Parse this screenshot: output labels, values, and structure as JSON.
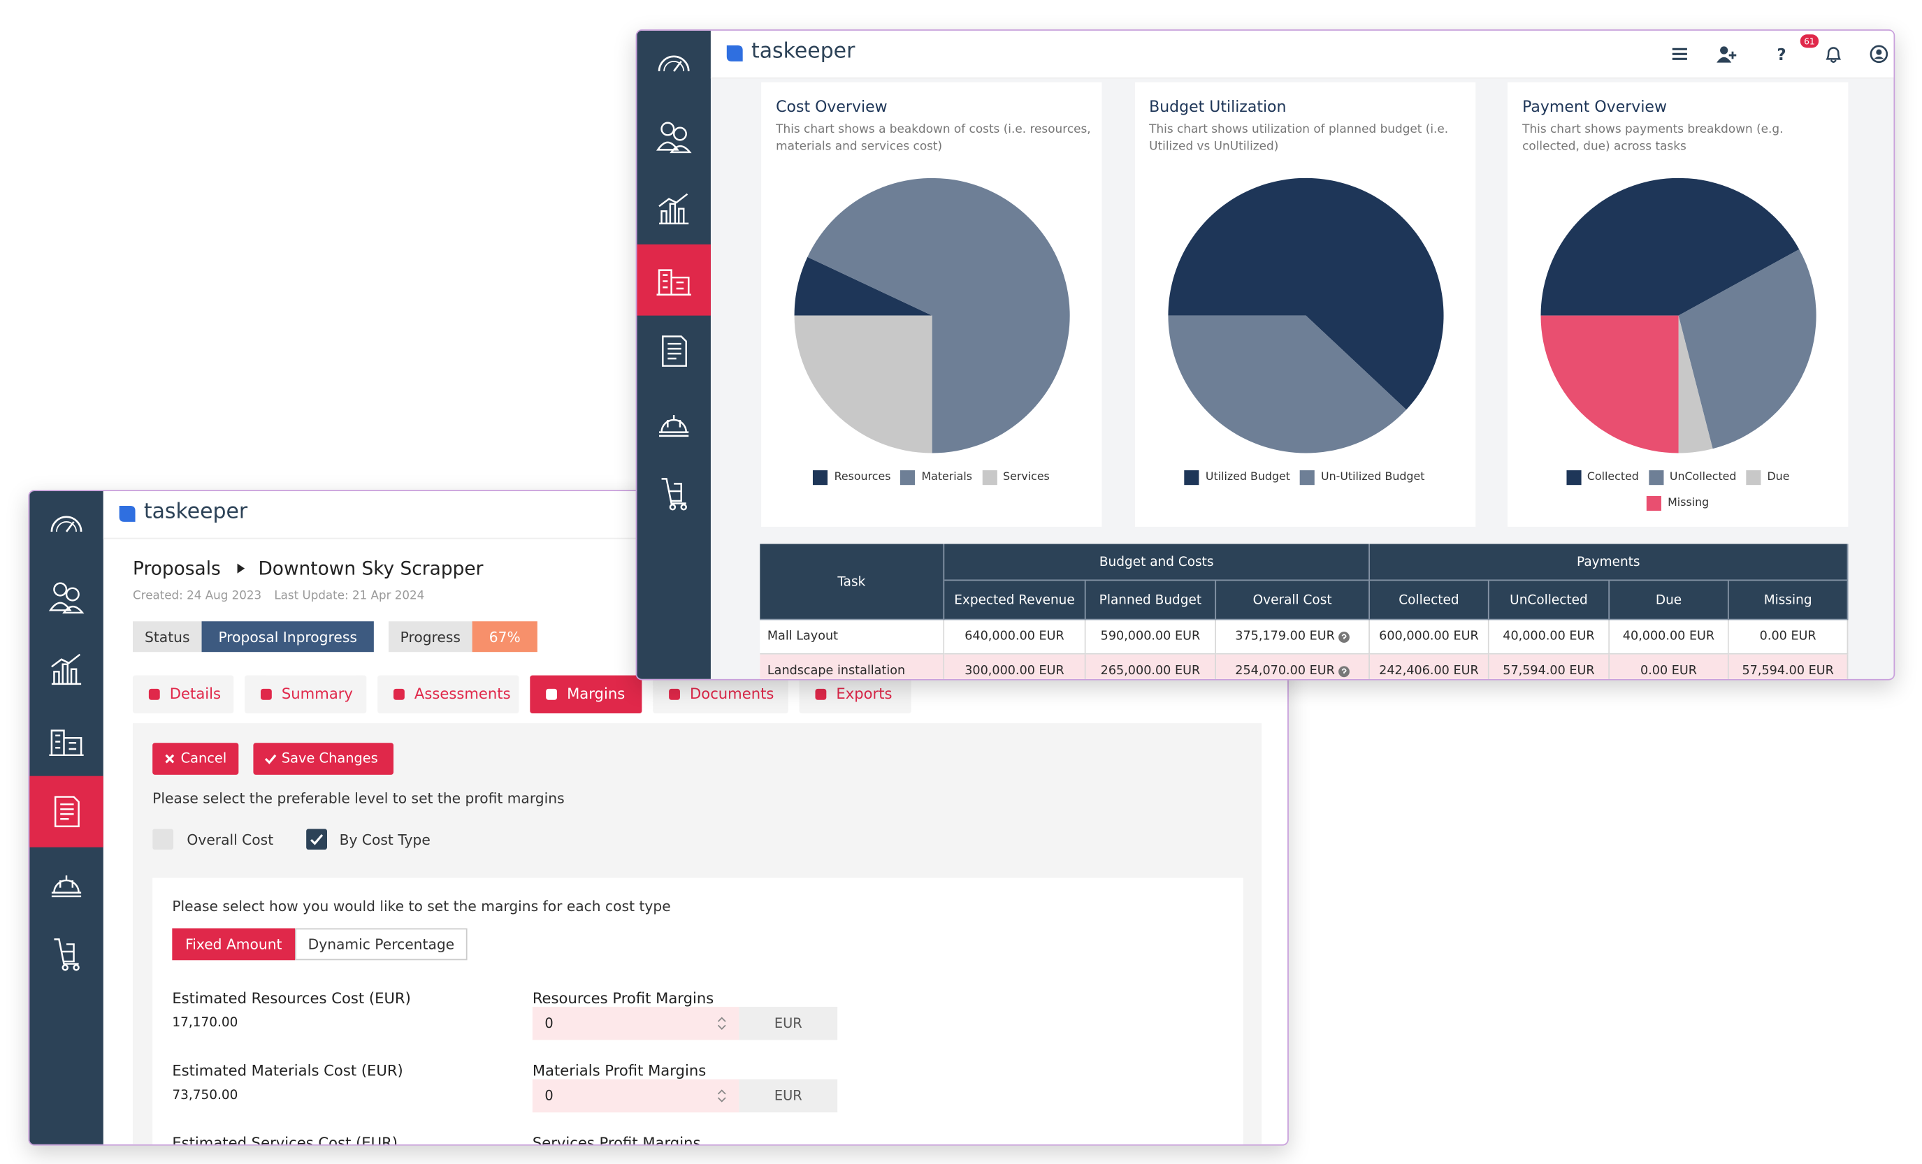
{
  "proposal_window": {
    "brand": "taskeeper",
    "breadcrumb": [
      "Proposals",
      "Downtown Sky Scrapper"
    ],
    "created": "Created: 24 Aug 2023",
    "updated": "Last Update: 21 Apr 2024",
    "status_label": "Status",
    "status": "Proposal Inprogress",
    "progress_label": "Progress",
    "progress": "67%",
    "tabs": [
      "Details",
      "Summary",
      "Assessments",
      "Margins",
      "Documents",
      "Exports"
    ],
    "cancel": "Cancel",
    "save": "Save Changes",
    "level_prompt": "Please select the preferable level to set the profit margins",
    "level_options": [
      "Overall Cost",
      "By Cost Type"
    ],
    "margin_prompt": "Please select how you would like to set the margins for each cost type",
    "modes": [
      "Fixed Amount",
      "Dynamic Percentage"
    ],
    "fields": [
      {
        "label": "Estimated Resources Cost (EUR)",
        "value": "17,170.00",
        "margin_label": "Resources Profit Margins",
        "input": "0",
        "unit": "EUR"
      },
      {
        "label": "Estimated Materials Cost (EUR)",
        "value": "73,750.00",
        "margin_label": "Materials Profit Margins",
        "input": "0",
        "unit": "EUR"
      },
      {
        "label": "Estimated Services Cost (EUR)",
        "margin_label": "Services Profit Margins"
      }
    ]
  },
  "dashboard_window": {
    "brand": "taskeeper",
    "notifications": "61",
    "table": {
      "task_header": "Task",
      "groups": [
        "Budget and Costs",
        "Payments"
      ],
      "columns": [
        "Expected Revenue",
        "Planned Budget",
        "Overall Cost",
        "Collected",
        "UnCollected",
        "Due",
        "Missing"
      ],
      "rows": [
        [
          "Mall Layout",
          "640,000.00 EUR",
          "590,000.00 EUR",
          "375,179.00 EUR",
          "600,000.00 EUR",
          "40,000.00 EUR",
          "40,000.00 EUR",
          "0.00 EUR"
        ],
        [
          "Landscape installation",
          "300,000.00 EUR",
          "265,000.00 EUR",
          "254,070.00 EUR",
          "242,406.00 EUR",
          "57,594.00 EUR",
          "0.00 EUR",
          "57,594.00 EUR"
        ]
      ]
    }
  },
  "chart_data": [
    {
      "type": "pie",
      "title": "Cost Overview",
      "subtitle": "This chart shows a beakdown of costs (i.e. resources, materials and services cost)",
      "categories": [
        "Resources",
        "Materials",
        "Services"
      ],
      "values": [
        7,
        68,
        25
      ],
      "colors": [
        "#1e3658",
        "#6e7f96",
        "#c8c8c8"
      ]
    },
    {
      "type": "pie",
      "title": "Budget Utilization",
      "subtitle": "This chart shows utilization of planned budget (i.e. Utilized vs UnUtilized)",
      "categories": [
        "Utilized Budget",
        "Un-Utilized Budget"
      ],
      "values": [
        62,
        38
      ],
      "colors": [
        "#1e3658",
        "#6e7f96"
      ]
    },
    {
      "type": "pie",
      "title": "Payment Overview",
      "subtitle": "This chart shows payments breakdown (e.g. collected, due) across tasks",
      "categories": [
        "Collected",
        "UnCollected",
        "Due",
        "Missing"
      ],
      "values": [
        42,
        29,
        4,
        25
      ],
      "colors": [
        "#1e3658",
        "#6e7f96",
        "#c8c8c8",
        "#e94f70"
      ]
    }
  ]
}
